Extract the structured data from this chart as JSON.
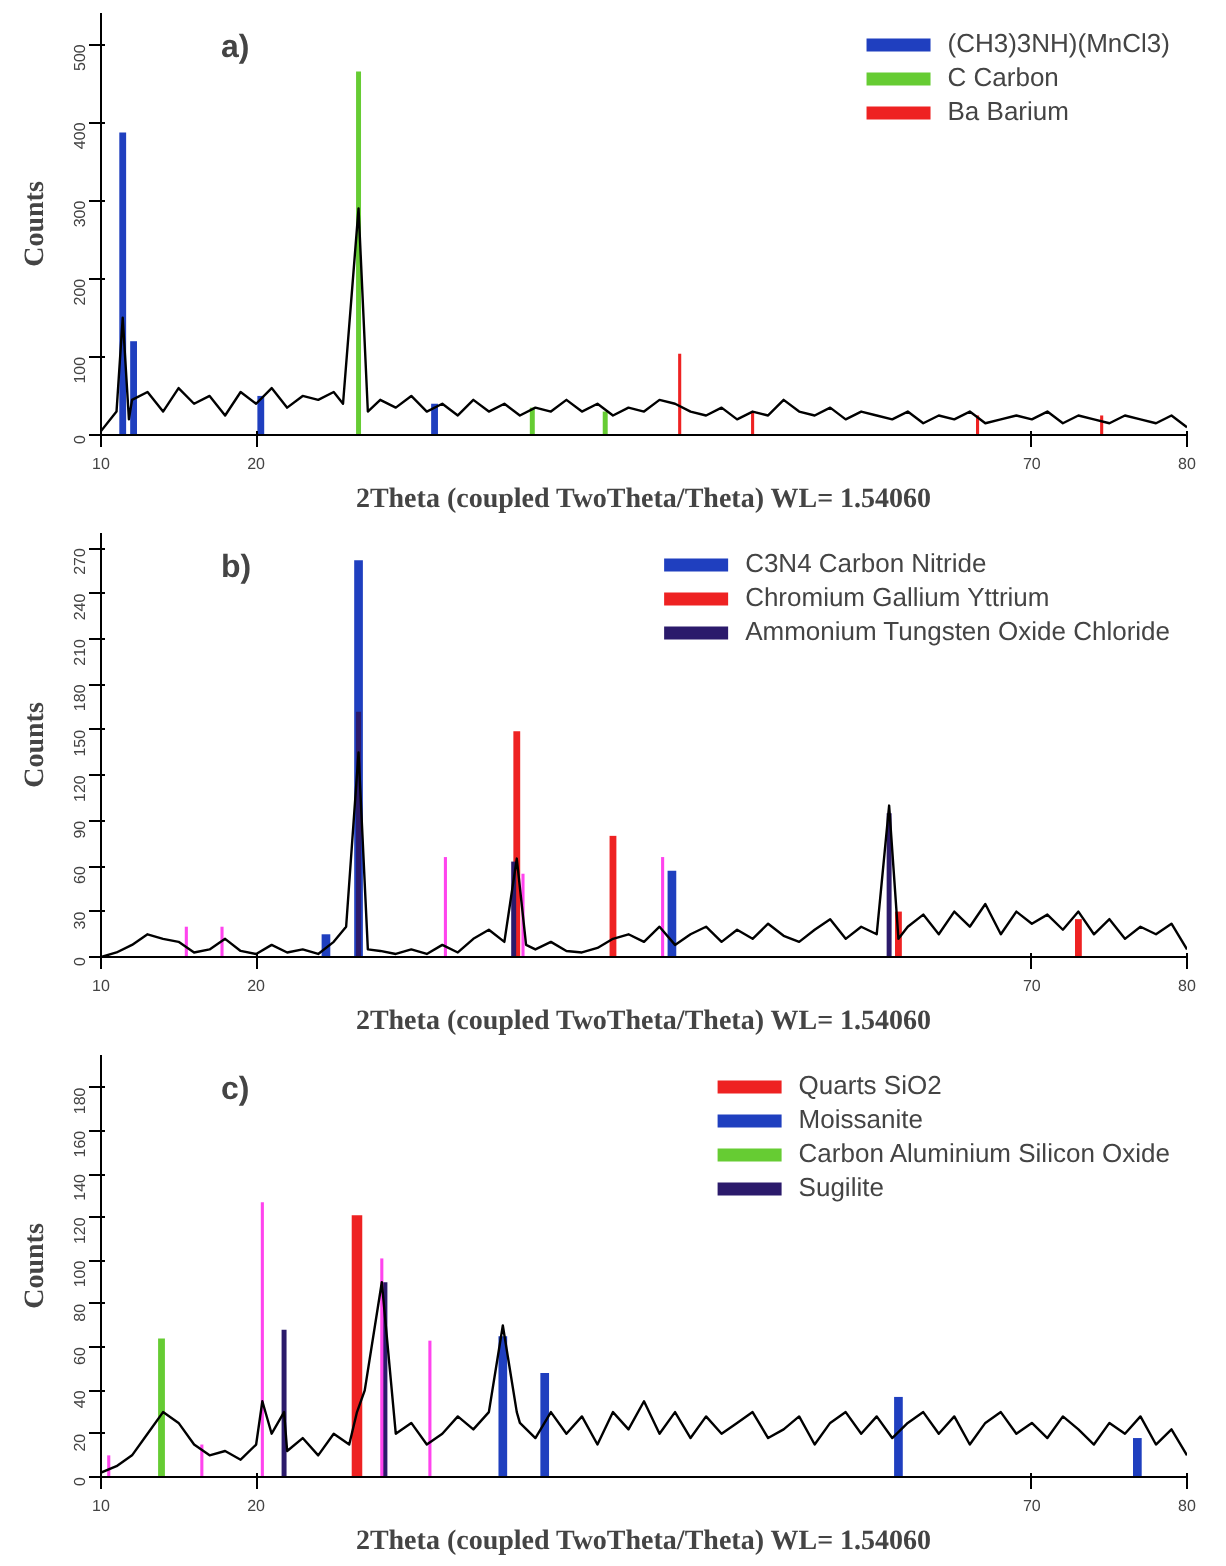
{
  "chart_data": [
    {
      "type": "line",
      "title": "a)",
      "xlabel": "2Theta (coupled TwoTheta/Theta) WL= 1.54060",
      "ylabel": "Counts",
      "xlim": [
        10,
        80
      ],
      "xticks": [
        10,
        20,
        70,
        80
      ],
      "ylim": [
        0,
        540
      ],
      "yticks": [
        0,
        100,
        200,
        300,
        400,
        500
      ],
      "legend": "top right",
      "series": [
        {
          "color": "#000000",
          "x": [
            10,
            11,
            11.4,
            11.8,
            12,
            13,
            14,
            15,
            16,
            17,
            18,
            19,
            20,
            21,
            22,
            23,
            24,
            25,
            25.6,
            26.6,
            27.2,
            28,
            29,
            30,
            31,
            32,
            33,
            34,
            35,
            36,
            37,
            38,
            39,
            40,
            41,
            42,
            43,
            44,
            45,
            46,
            47,
            48,
            49,
            50,
            51,
            52,
            53,
            54,
            55,
            56,
            57,
            58,
            59,
            60,
            61,
            62,
            63,
            64,
            65,
            66,
            67,
            68,
            69,
            70,
            71,
            72,
            73,
            74,
            75,
            76,
            77,
            78,
            79,
            80
          ],
          "values": [
            5,
            30,
            150,
            20,
            45,
            55,
            30,
            60,
            40,
            50,
            25,
            55,
            40,
            60,
            35,
            50,
            45,
            55,
            40,
            290,
            30,
            45,
            35,
            50,
            30,
            40,
            25,
            45,
            30,
            40,
            25,
            35,
            30,
            45,
            30,
            40,
            25,
            35,
            30,
            45,
            40,
            30,
            25,
            35,
            20,
            30,
            25,
            45,
            30,
            25,
            35,
            20,
            30,
            25,
            20,
            30,
            15,
            25,
            20,
            30,
            15,
            20,
            25,
            20,
            30,
            15,
            25,
            20,
            15,
            25,
            20,
            15,
            25,
            10
          ]
        },
        {
          "type": "bar",
          "name": "(CH3)3NH)(MnCl3)",
          "color": "#1f3fbf",
          "x": [
            11.4,
            12.1,
            20.3,
            31.5
          ],
          "values": [
            387,
            120,
            50,
            40
          ]
        },
        {
          "type": "bar",
          "name": "C Carbon",
          "color": "#66cc33",
          "x": [
            26.6,
            37.8,
            42.5
          ],
          "values": [
            465,
            35,
            30
          ]
        },
        {
          "type": "bar",
          "name": "Ba Barium",
          "color": "#ee2222",
          "x": [
            47.3,
            52,
            66.5,
            74.5
          ],
          "values": [
            104,
            30,
            25,
            25
          ]
        }
      ]
    },
    {
      "type": "line",
      "title": "b)",
      "xlabel": "2Theta (coupled TwoTheta/Theta) WL= 1.54060",
      "ylabel": "Counts",
      "xlim": [
        10,
        80
      ],
      "xticks": [
        10,
        20,
        70,
        80
      ],
      "ylim": [
        0,
        280
      ],
      "yticks": [
        0,
        30,
        60,
        90,
        120,
        150,
        180,
        210,
        240,
        270
      ],
      "legend": "top right",
      "series": [
        {
          "color": "#000000",
          "x": [
            10,
            11,
            12,
            13,
            14,
            15,
            16,
            17,
            18,
            19,
            20,
            21,
            22,
            23,
            24,
            25,
            25.8,
            26.6,
            27.2,
            28,
            29,
            30,
            31,
            32,
            33,
            34,
            35,
            36,
            36.8,
            37.4,
            38,
            39,
            40,
            41,
            42,
            43,
            44,
            45,
            46,
            47,
            48,
            49,
            50,
            51,
            52,
            53,
            54,
            55,
            56,
            57,
            58,
            59,
            60,
            60.8,
            61.4,
            62,
            63,
            64,
            65,
            66,
            67,
            68,
            69,
            70,
            71,
            72,
            73,
            74,
            75,
            76,
            77,
            78,
            79,
            80
          ],
          "values": [
            0,
            3,
            8,
            15,
            12,
            10,
            3,
            5,
            12,
            4,
            2,
            8,
            3,
            5,
            2,
            10,
            20,
            135,
            5,
            4,
            2,
            5,
            2,
            8,
            3,
            12,
            18,
            10,
            65,
            8,
            5,
            10,
            4,
            3,
            6,
            12,
            15,
            10,
            20,
            8,
            15,
            20,
            10,
            18,
            12,
            22,
            14,
            10,
            18,
            25,
            12,
            20,
            15,
            100,
            12,
            20,
            28,
            15,
            30,
            20,
            35,
            15,
            30,
            22,
            28,
            18,
            30,
            15,
            25,
            12,
            20,
            15,
            22,
            5
          ]
        },
        {
          "type": "bar",
          "name": "C3N4 Carbon Nitride",
          "color": "#1f3fbf",
          "x": [
            24.5,
            26.6,
            46.8
          ],
          "values": [
            15,
            262,
            57
          ]
        },
        {
          "type": "bar",
          "name": "Chromium Gallium Yttrium",
          "color": "#ee2222",
          "x": [
            36.8,
            43,
            61.4,
            73
          ],
          "values": [
            149,
            80,
            30,
            25
          ]
        },
        {
          "type": "bar",
          "name": "Ammonium Tungsten Oxide Chloride",
          "color": "#2b1a6b",
          "x": [
            26.6,
            36.6,
            60.8
          ],
          "values": [
            162,
            63,
            95
          ]
        },
        {
          "type": "bar",
          "color": "#ff44ee",
          "x": [
            15.5,
            17.8,
            32.2,
            37.2,
            46.2
          ],
          "values": [
            20,
            20,
            66,
            55,
            66
          ]
        }
      ]
    },
    {
      "type": "line",
      "title": "c)",
      "xlabel": "2Theta (coupled TwoTheta/Theta) WL= 1.54060",
      "ylabel": "Counts",
      "xlim": [
        10,
        80
      ],
      "xticks": [
        10,
        20,
        70,
        80
      ],
      "ylim": [
        0,
        195
      ],
      "yticks": [
        0,
        20,
        40,
        60,
        80,
        100,
        120,
        140,
        160,
        180
      ],
      "legend": "top right",
      "series": [
        {
          "color": "#000000",
          "x": [
            10,
            11,
            12,
            13,
            14,
            15,
            16,
            17,
            18,
            19,
            20,
            20.4,
            21,
            21.8,
            22,
            23,
            24,
            25,
            26,
            26.5,
            27,
            28.1,
            29,
            30,
            31,
            32,
            33,
            34,
            35,
            35.9,
            36.8,
            37,
            38,
            39,
            40,
            41,
            42,
            43,
            44,
            45,
            46,
            47,
            48,
            49,
            50,
            51,
            52,
            53,
            54,
            55,
            56,
            57,
            58,
            59,
            60,
            61,
            62,
            63,
            64,
            65,
            66,
            67,
            68,
            69,
            70,
            71,
            72,
            73,
            74,
            75,
            76,
            77,
            78,
            79,
            80
          ],
          "values": [
            2,
            5,
            10,
            20,
            30,
            25,
            15,
            10,
            12,
            8,
            15,
            35,
            20,
            30,
            12,
            18,
            10,
            20,
            15,
            30,
            40,
            90,
            20,
            25,
            15,
            20,
            28,
            22,
            30,
            70,
            30,
            25,
            18,
            30,
            20,
            28,
            15,
            30,
            22,
            35,
            20,
            30,
            18,
            28,
            20,
            25,
            30,
            18,
            22,
            28,
            15,
            25,
            30,
            20,
            28,
            18,
            25,
            30,
            20,
            28,
            15,
            25,
            30,
            20,
            25,
            18,
            28,
            22,
            15,
            25,
            20,
            28,
            15,
            22,
            10
          ]
        },
        {
          "type": "bar",
          "name": "Quarts SiO2",
          "color": "#ee2222",
          "x": [
            26.5
          ],
          "values": [
            121
          ]
        },
        {
          "type": "bar",
          "name": "Moissanite",
          "color": "#1f3fbf",
          "x": [
            35.9,
            38.6,
            61.4,
            76.8
          ],
          "values": [
            65,
            48,
            37,
            18
          ]
        },
        {
          "type": "bar",
          "name": "Carbon Aluminium Silicon Oxide",
          "color": "#66cc33",
          "x": [
            13.9
          ],
          "values": [
            64
          ]
        },
        {
          "type": "bar",
          "name": "Sugilite",
          "color": "#2b1a6b",
          "x": [
            21.8,
            28.3
          ],
          "values": [
            68,
            90
          ]
        },
        {
          "type": "bar",
          "color": "#ff44ee",
          "x": [
            10.5,
            16.5,
            20.4,
            28.1,
            31.2
          ],
          "values": [
            10,
            15,
            127,
            101,
            63
          ]
        }
      ]
    }
  ]
}
